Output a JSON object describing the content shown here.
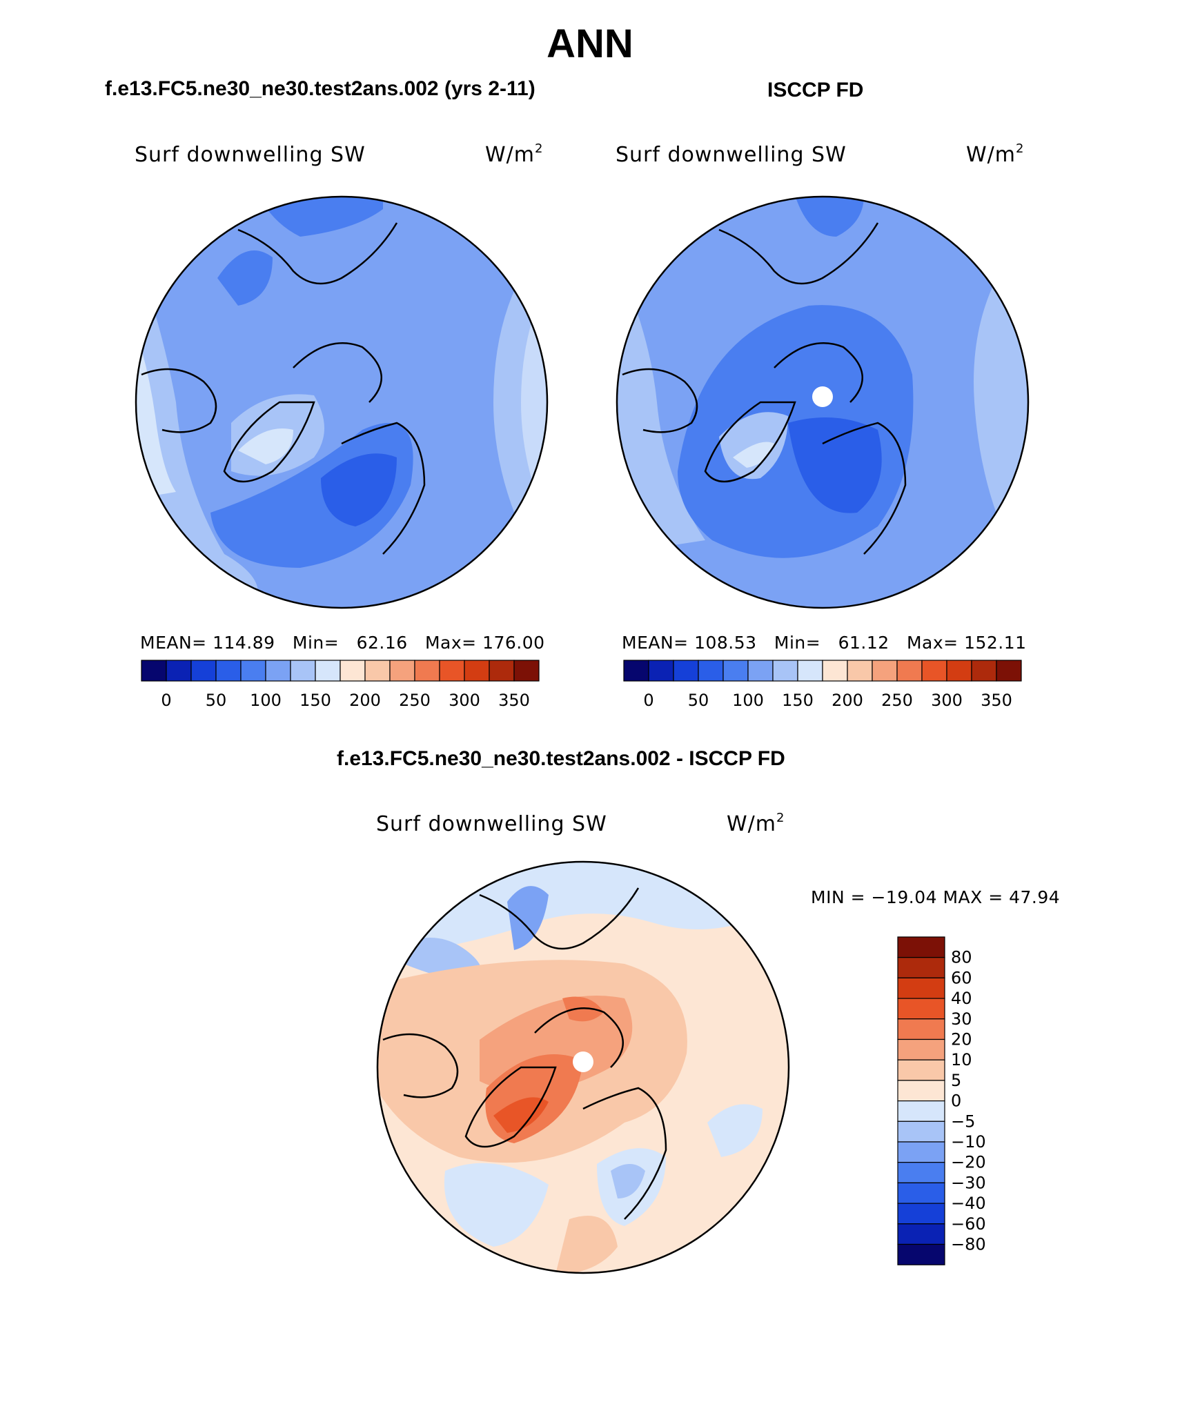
{
  "main_title": "ANN",
  "panels": [
    {
      "subtitle": "f.e13.FC5.ne30_ne30.test2ans.002 (yrs 2-11)",
      "variable": "Surf downwelling SW",
      "units": "W/m",
      "units_exp": "2",
      "stats": {
        "mean_label": "MEAN=",
        "mean": "114.89",
        "min_label": "Min=",
        "min": "62.16",
        "max_label": "Max=",
        "max": "176.00"
      }
    },
    {
      "subtitle": "ISCCP FD",
      "variable": "Surf downwelling SW",
      "units": "W/m",
      "units_exp": "2",
      "stats": {
        "mean_label": "MEAN=",
        "mean": "108.53",
        "min_label": "Min=",
        "min": "61.12",
        "max_label": "Max=",
        "max": "152.11"
      }
    }
  ],
  "abs_colorbar": {
    "ticks": [
      "0",
      "50",
      "100",
      "150",
      "200",
      "250",
      "300",
      "350"
    ],
    "colors": [
      "#06066e",
      "#0a22b4",
      "#1540d8",
      "#2a5ee8",
      "#4a7ef0",
      "#7ba2f4",
      "#a8c4f7",
      "#d6e6fb",
      "#fde6d4",
      "#f9c8a9",
      "#f5a27d",
      "#f07a50",
      "#e85527",
      "#d33d12",
      "#ad2a0c",
      "#7c1106"
    ]
  },
  "diff_panel": {
    "subtitle": "f.e13.FC5.ne30_ne30.test2ans.002 - ISCCP FD",
    "variable": "Surf downwelling SW",
    "units": "W/m",
    "units_exp": "2",
    "minmax": "MIN = −19.04 MAX =   47.94",
    "colorbar_ticks": [
      "80",
      "60",
      "40",
      "30",
      "20",
      "10",
      "5",
      "0",
      "−5",
      "−10",
      "−20",
      "−30",
      "−40",
      "−60",
      "−80"
    ],
    "colorbar_colors": [
      "#7c1106",
      "#ad2a0c",
      "#d33d12",
      "#e85527",
      "#f07a50",
      "#f5a27d",
      "#f9c8a9",
      "#fde6d4",
      "#d6e6fb",
      "#a8c4f7",
      "#7ba2f4",
      "#4a7ef0",
      "#2a5ee8",
      "#1540d8",
      "#0a22b4",
      "#06066e"
    ]
  }
}
